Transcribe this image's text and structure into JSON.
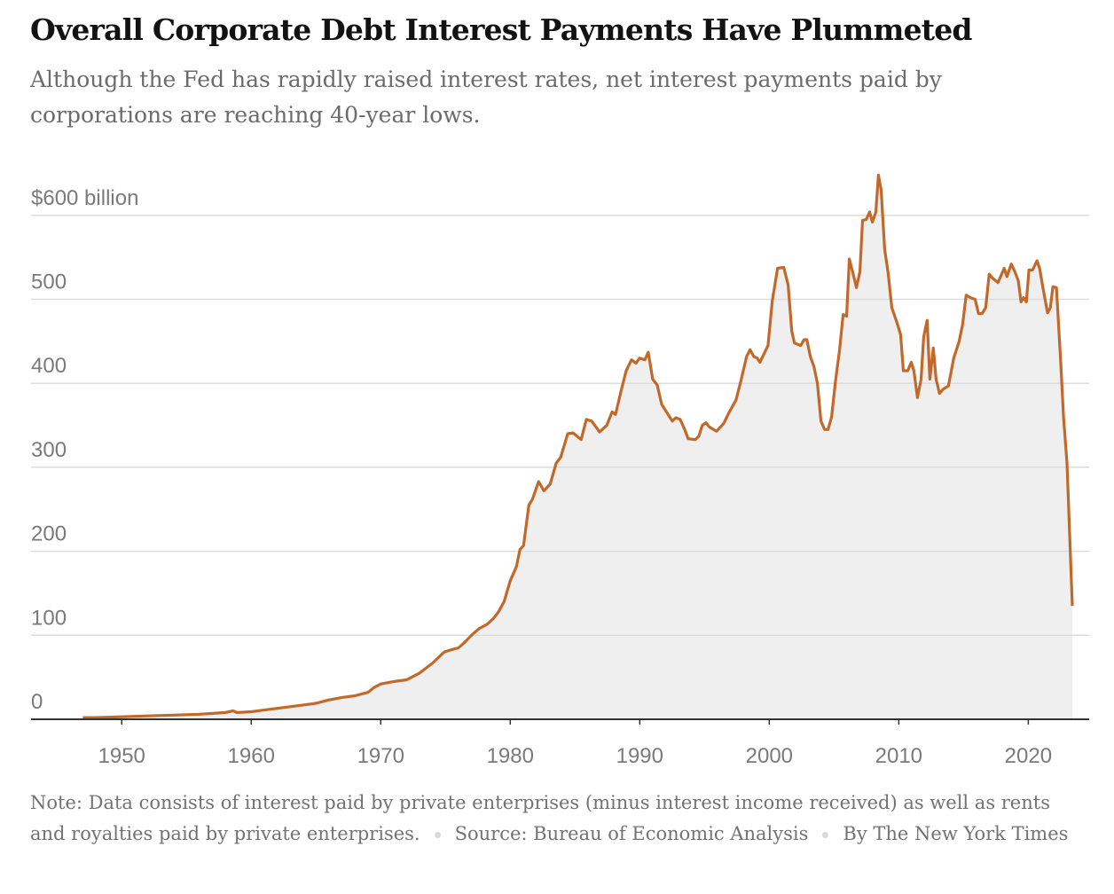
{
  "chart_data": {
    "type": "area",
    "title": "Overall Corporate Debt Interest Payments Have Plummeted",
    "subtitle": "Although the Fed has rapidly raised interest rates, net interest payments paid by corporations are reaching 40-year lows.",
    "note": "Note: Data consists of interest paid by private enterprises (minus interest income received) as well as rents and royalties paid by private enterprises.",
    "source": "Source: Bureau of Economic Analysis",
    "credit": "By The New York Times",
    "color": "#c2692a",
    "area_color": "#efefef",
    "grid": true,
    "xlim": [
      1943,
      2024.7
    ],
    "ylim": [
      0,
      660
    ],
    "xticks": [
      1950,
      1960,
      1970,
      1980,
      1990,
      2000,
      2010,
      2020
    ],
    "yticks": [
      0,
      100,
      200,
      300,
      400,
      500,
      {
        "value": 600,
        "label": "$600 billion"
      }
    ],
    "x": [
      1947,
      1948,
      1950,
      1952,
      1954,
      1956,
      1957,
      1958,
      1958.6,
      1958.9,
      1960,
      1961,
      1962,
      1963,
      1964,
      1965,
      1966,
      1967,
      1968,
      1969,
      1969.5,
      1970,
      1971,
      1972,
      1973,
      1974,
      1974.9,
      1975.5,
      1976,
      1976.5,
      1977,
      1977.6,
      1978.2,
      1978.7,
      1979.1,
      1979.52,
      1980,
      1980.48,
      1980.75,
      1981.03,
      1981.44,
      1981.71,
      1982.19,
      1982.6,
      1983.08,
      1983.55,
      1983.9,
      1984.44,
      1984.85,
      1985.47,
      1985.88,
      1986.29,
      1986.9,
      1987.45,
      1987.86,
      1988.13,
      1988.54,
      1988.95,
      1989.36,
      1989.71,
      1989.98,
      1990.39,
      1990.66,
      1991,
      1991.35,
      1991.69,
      1992.1,
      1992.51,
      1992.78,
      1993.12,
      1993.47,
      1993.74,
      1994.29,
      1994.56,
      1994.83,
      1995.11,
      1995.38,
      1995.93,
      1996.47,
      1996.88,
      1997.43,
      1997.84,
      1998.25,
      1998.52,
      1998.8,
      1999.07,
      1999.28,
      1999.9,
      2000.23,
      2000.64,
      2001.12,
      2001.46,
      2001.74,
      2001.94,
      2002.42,
      2002.69,
      2002.9,
      2003.17,
      2003.45,
      2003.72,
      2003.99,
      2004.27,
      2004.54,
      2004.81,
      2005.09,
      2005.43,
      2005.7,
      2005.97,
      2006.18,
      2006.45,
      2006.73,
      2007,
      2007.2,
      2007.48,
      2007.75,
      2007.96,
      2008.23,
      2008.43,
      2008.64,
      2008.91,
      2009.19,
      2009.46,
      2009.87,
      2010.14,
      2010.35,
      2010.69,
      2010.96,
      2011.17,
      2011.44,
      2011.72,
      2011.92,
      2012.19,
      2012.4,
      2012.67,
      2012.88,
      2013.15,
      2013.42,
      2013.83,
      2014.24,
      2014.66,
      2014.93,
      2015.2,
      2015.54,
      2015.89,
      2016.16,
      2016.43,
      2016.71,
      2016.98,
      2017.25,
      2017.66,
      2017.94,
      2018.14,
      2018.35,
      2018.69,
      2018.96,
      2019.23,
      2019.44,
      2019.64,
      2019.85,
      2020.05,
      2020.33,
      2020.67,
      2020.87,
      2021.15,
      2021.49,
      2021.7,
      2021.9,
      2022.17,
      2022.52,
      2022.72,
      2022.99,
      2023.4
    ],
    "values": [
      2,
      2,
      3,
      4,
      5,
      6,
      7,
      8,
      10,
      8,
      9,
      11,
      13,
      15,
      17,
      19,
      23,
      26,
      28,
      32,
      38,
      42,
      45,
      47,
      55,
      67,
      80,
      83,
      85,
      92,
      100,
      108,
      113,
      120,
      128,
      140,
      165,
      182,
      202,
      207,
      255,
      262,
      283,
      272,
      280,
      305,
      312,
      340,
      341,
      333,
      357,
      355,
      342,
      350,
      366,
      363,
      390,
      415,
      428,
      424,
      430,
      428,
      437,
      405,
      398,
      375,
      365,
      355,
      359,
      357,
      345,
      334,
      333,
      337,
      350,
      353,
      348,
      343,
      352,
      365,
      380,
      405,
      432,
      440,
      432,
      430,
      425,
      445,
      498,
      537,
      538,
      517,
      462,
      448,
      445,
      452,
      452,
      432,
      420,
      400,
      355,
      345,
      345,
      360,
      400,
      440,
      482,
      480,
      548,
      532,
      514,
      533,
      594,
      595,
      604,
      592,
      604,
      648,
      630,
      560,
      530,
      490,
      472,
      458,
      415,
      415,
      425,
      415,
      383,
      405,
      455,
      475,
      405,
      442,
      405,
      388,
      393,
      397,
      430,
      450,
      470,
      505,
      502,
      500,
      483,
      483,
      490,
      530,
      525,
      520,
      530,
      537,
      527,
      542,
      533,
      522,
      497,
      502,
      497,
      535,
      535,
      546,
      537,
      512,
      484,
      490,
      515,
      514,
      420,
      360,
      305,
      135
    ]
  }
}
